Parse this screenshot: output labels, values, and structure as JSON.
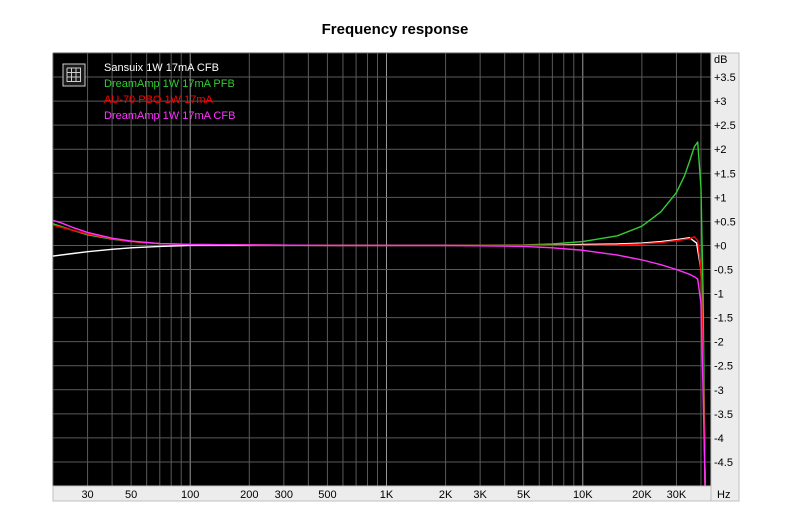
{
  "chart_data": {
    "type": "line",
    "title": "Frequency response",
    "xlabel": "Hz",
    "ylabel": "dB",
    "x_scale": "log",
    "xlim": [
      20,
      45000
    ],
    "ylim": [
      -5,
      4
    ],
    "grid": true,
    "legend_position": "top-left",
    "background": "#000000",
    "x_ticks": [
      {
        "value": 30,
        "label": "30"
      },
      {
        "value": 50,
        "label": "50"
      },
      {
        "value": 100,
        "label": "100"
      },
      {
        "value": 200,
        "label": "200"
      },
      {
        "value": 300,
        "label": "300"
      },
      {
        "value": 500,
        "label": "500"
      },
      {
        "value": 1000,
        "label": "1K"
      },
      {
        "value": 2000,
        "label": "2K"
      },
      {
        "value": 3000,
        "label": "3K"
      },
      {
        "value": 5000,
        "label": "5K"
      },
      {
        "value": 10000,
        "label": "10K"
      },
      {
        "value": 20000,
        "label": "20K"
      },
      {
        "value": 30000,
        "label": "30K"
      }
    ],
    "y_ticks": [
      {
        "value": 3.5,
        "label": "+3.5"
      },
      {
        "value": 3,
        "label": "+3"
      },
      {
        "value": 2.5,
        "label": "+2.5"
      },
      {
        "value": 2,
        "label": "+2"
      },
      {
        "value": 1.5,
        "label": "+1.5"
      },
      {
        "value": 1,
        "label": "+1"
      },
      {
        "value": 0.5,
        "label": "+0.5"
      },
      {
        "value": 0,
        "label": "+0"
      },
      {
        "value": -0.5,
        "label": "-0.5"
      },
      {
        "value": -1,
        "label": "-1"
      },
      {
        "value": -1.5,
        "label": "-1.5"
      },
      {
        "value": -2,
        "label": "-2"
      },
      {
        "value": -2.5,
        "label": "-2.5"
      },
      {
        "value": -3,
        "label": "-3"
      },
      {
        "value": -3.5,
        "label": "-3.5"
      },
      {
        "value": -4,
        "label": "-4"
      },
      {
        "value": -4.5,
        "label": "-4.5"
      }
    ],
    "series": [
      {
        "name": "Sansuix 1W 17mA CFB",
        "color": "#ffffff",
        "x": [
          20,
          25,
          30,
          40,
          50,
          70,
          100,
          200,
          500,
          1000,
          2000,
          5000,
          8000,
          10000,
          15000,
          20000,
          25000,
          30000,
          35000,
          38000,
          40000,
          41000,
          42000
        ],
        "y": [
          -0.22,
          -0.17,
          -0.13,
          -0.08,
          -0.05,
          -0.02,
          0,
          0,
          0,
          0,
          0,
          0,
          0.01,
          0.02,
          0.03,
          0.05,
          0.08,
          0.12,
          0.16,
          0.05,
          -0.5,
          -2,
          -5
        ]
      },
      {
        "name": "DreamAmp 1W 17mA PFB",
        "color": "#33cc33",
        "x": [
          20,
          25,
          30,
          40,
          50,
          70,
          100,
          200,
          500,
          1000,
          2000,
          5000,
          7000,
          10000,
          15000,
          20000,
          25000,
          30000,
          33000,
          35000,
          37000,
          38500,
          40000,
          41000,
          42000
        ],
        "y": [
          0.45,
          0.32,
          0.22,
          0.13,
          0.08,
          0.04,
          0.02,
          0.01,
          0,
          0,
          0,
          0.01,
          0.03,
          0.08,
          0.2,
          0.4,
          0.7,
          1.1,
          1.45,
          1.75,
          2.05,
          2.15,
          1.2,
          -1,
          -5
        ]
      },
      {
        "name": "AU-70 PBO 1W 17mA",
        "color": "#ff0000",
        "x": [
          20,
          25,
          30,
          40,
          50,
          70,
          100,
          200,
          500,
          1000,
          2000,
          5000,
          10000,
          15000,
          20000,
          25000,
          30000,
          35000,
          37000,
          38500,
          40000,
          41000,
          42000
        ],
        "y": [
          0.42,
          0.32,
          0.24,
          0.14,
          0.08,
          0.04,
          0.02,
          0.01,
          0,
          0,
          0,
          0,
          0,
          0.01,
          0.03,
          0.06,
          0.1,
          0.14,
          0.18,
          0.1,
          -0.5,
          -2.2,
          -5
        ]
      },
      {
        "name": "DreamAmp 1W 17mA CFB",
        "color": "#ff33ff",
        "x": [
          20,
          22,
          25,
          30,
          40,
          50,
          70,
          100,
          200,
          500,
          1000,
          2000,
          5000,
          7000,
          10000,
          15000,
          20000,
          25000,
          30000,
          35000,
          37000,
          38500,
          40000,
          41000,
          42000
        ],
        "y": [
          0.52,
          0.47,
          0.38,
          0.27,
          0.15,
          0.09,
          0.04,
          0.02,
          0.01,
          0,
          0,
          0,
          -0.02,
          -0.05,
          -0.1,
          -0.2,
          -0.3,
          -0.4,
          -0.5,
          -0.6,
          -0.65,
          -0.7,
          -1.2,
          -3,
          -5
        ]
      }
    ]
  },
  "legend_icon": "graph-window-icon"
}
